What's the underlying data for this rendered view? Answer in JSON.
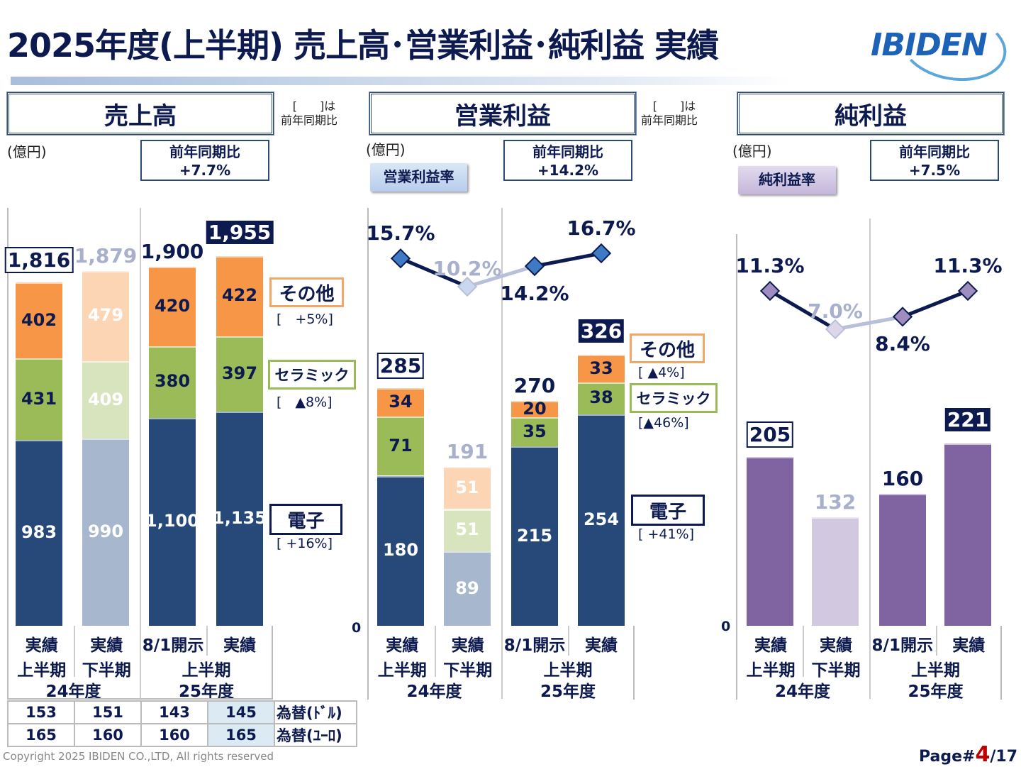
{
  "header": {
    "title": "2025年度(上半期) 売上高･営業利益･純利益 実績",
    "logo": "IBIDEN"
  },
  "colors": {
    "electronics": "#26497a",
    "ceramics": "#9bbb59",
    "other": "#f79646",
    "electronics_faded": "#a7b7cd",
    "ceramics_faded": "#d8e4bd",
    "other_faded": "#fcd5b5",
    "net": "#8064a2",
    "net_faded": "#d2c9e0",
    "navy": "#0d1a4f"
  },
  "note": {
    "bracket": "[　　]は",
    "text": "前年同期比"
  },
  "categories": {
    "row1": [
      "実績",
      "実績",
      "8/1開示",
      "実績"
    ],
    "row2": [
      "上半期",
      "下半期",
      "上半期"
    ],
    "row3": [
      "24年度",
      "25年度"
    ]
  },
  "axis_zero": "0",
  "panels": [
    {
      "title": "売上高",
      "unit": "(億円)",
      "yoy_label": "前年同期比",
      "yoy_value": "+7.7%",
      "bars": [
        {
          "total": "1,816",
          "style": "boxed",
          "faded": false,
          "segments": [
            {
              "label": "983",
              "value": 983
            },
            {
              "label": "431",
              "value": 431
            },
            {
              "label": "402",
              "value": 402
            }
          ]
        },
        {
          "total": "1,879",
          "style": "faded",
          "faded": true,
          "segments": [
            {
              "label": "990",
              "value": 990
            },
            {
              "label": "409",
              "value": 409
            },
            {
              "label": "479",
              "value": 479
            }
          ]
        },
        {
          "total": "1,900",
          "style": "plain",
          "faded": false,
          "segments": [
            {
              "label": "1,100",
              "value": 1100
            },
            {
              "label": "380",
              "value": 380
            },
            {
              "label": "420",
              "value": 420
            }
          ]
        },
        {
          "total": "1,955",
          "style": "filled",
          "faded": false,
          "segments": [
            {
              "label": "1,135",
              "value": 1135
            },
            {
              "label": "397",
              "value": 397
            },
            {
              "label": "422",
              "value": 422
            }
          ]
        }
      ],
      "legend": [
        {
          "label": "その他",
          "yoy": "[　+5%]"
        },
        {
          "label": "セラミック",
          "yoy": "[　▲8%]"
        },
        {
          "label": "電子",
          "yoy": "[ +16%]"
        }
      ]
    },
    {
      "title": "営業利益",
      "unit": "(億円)",
      "yoy_label": "前年同期比",
      "yoy_value": "+14.2%",
      "rate_label": "営業利益率",
      "rates": [
        {
          "label": "15.7%",
          "value": 15.7
        },
        {
          "label": "10.2%",
          "value": 10.2
        },
        {
          "label": "14.2%",
          "value": 14.2
        },
        {
          "label": "16.7%",
          "value": 16.7
        }
      ],
      "bars": [
        {
          "total": "285",
          "style": "boxed",
          "faded": false,
          "segments": [
            {
              "label": "180",
              "value": 180
            },
            {
              "label": "71",
              "value": 71
            },
            {
              "label": "34",
              "value": 34
            }
          ]
        },
        {
          "total": "191",
          "style": "faded",
          "faded": true,
          "segments": [
            {
              "label": "89",
              "value": 89
            },
            {
              "label": "51",
              "value": 51
            },
            {
              "label": "51",
              "value": 51
            }
          ]
        },
        {
          "total": "270",
          "style": "plain",
          "faded": false,
          "segments": [
            {
              "label": "215",
              "value": 215
            },
            {
              "label": "35",
              "value": 35
            },
            {
              "label": "20",
              "value": 20
            }
          ]
        },
        {
          "total": "326",
          "style": "filled",
          "faded": false,
          "segments": [
            {
              "label": "254",
              "value": 254
            },
            {
              "label": "38",
              "value": 38
            },
            {
              "label": "33",
              "value": 33
            }
          ]
        }
      ],
      "legend": [
        {
          "label": "その他",
          "yoy": "[ ▲4%]"
        },
        {
          "label": "セラミック",
          "yoy": "[▲46%]"
        },
        {
          "label": "電子",
          "yoy": "[ +41%]"
        }
      ]
    },
    {
      "title": "純利益",
      "unit": "(億円)",
      "yoy_label": "前年同期比",
      "yoy_value": "+7.5%",
      "rate_label": "純利益率",
      "rates": [
        {
          "label": "11.3%",
          "value": 11.3
        },
        {
          "label": "7.0%",
          "value": 7.0
        },
        {
          "label": "8.4%",
          "value": 8.4
        },
        {
          "label": "11.3%",
          "value": 11.3
        }
      ],
      "bars": [
        {
          "total": "205",
          "style": "boxed",
          "faded": false,
          "value": 205
        },
        {
          "total": "132",
          "style": "faded",
          "faded": true,
          "value": 132
        },
        {
          "total": "160",
          "style": "plain",
          "faded": false,
          "value": 160
        },
        {
          "total": "221",
          "style": "filled",
          "faded": false,
          "value": 221
        }
      ]
    }
  ],
  "fx": {
    "rows": [
      {
        "label": "為替(ﾄﾞﾙ)",
        "values": [
          "153",
          "151",
          "143",
          "145"
        ]
      },
      {
        "label": "為替(ﾕｰﾛ)",
        "values": [
          "165",
          "160",
          "160",
          "165"
        ]
      }
    ]
  },
  "footer": {
    "copyright": "Copyright 2025 IBIDEN CO.,LTD, All rights reserved",
    "page_prefix": "Page#",
    "page_current": "4",
    "page_total": "/17"
  },
  "chart_data": [
    {
      "type": "bar",
      "stacked": true,
      "title": "売上高",
      "ylabel": "(億円)",
      "categories": [
        "24年度 上半期 実績",
        "24年度 下半期 実績",
        "25年度 上半期 8/1開示",
        "25年度 上半期 実績"
      ],
      "series": [
        {
          "name": "電子",
          "values": [
            983,
            990,
            1100,
            1135
          ]
        },
        {
          "name": "セラミック",
          "values": [
            431,
            409,
            380,
            397
          ]
        },
        {
          "name": "その他",
          "values": [
            402,
            479,
            420,
            422
          ]
        }
      ],
      "totals": [
        1816,
        1879,
        1900,
        1955
      ]
    },
    {
      "type": "bar",
      "stacked": true,
      "title": "営業利益",
      "ylabel": "(億円)",
      "categories": [
        "24年度 上半期 実績",
        "24年度 下半期 実績",
        "25年度 上半期 8/1開示",
        "25年度 上半期 実績"
      ],
      "series": [
        {
          "name": "電子",
          "values": [
            180,
            89,
            215,
            254
          ]
        },
        {
          "name": "セラミック",
          "values": [
            71,
            51,
            35,
            38
          ]
        },
        {
          "name": "その他",
          "values": [
            34,
            51,
            20,
            33
          ]
        }
      ],
      "totals": [
        285,
        191,
        270,
        326
      ],
      "line": {
        "name": "営業利益率",
        "values": [
          15.7,
          10.2,
          14.2,
          16.7
        ]
      }
    },
    {
      "type": "bar",
      "title": "純利益",
      "ylabel": "(億円)",
      "categories": [
        "24年度 上半期 実績",
        "24年度 下半期 実績",
        "25年度 上半期 8/1開示",
        "25年度 上半期 実績"
      ],
      "values": [
        205,
        132,
        160,
        221
      ],
      "line": {
        "name": "純利益率",
        "values": [
          11.3,
          7.0,
          8.4,
          11.3
        ]
      }
    }
  ]
}
